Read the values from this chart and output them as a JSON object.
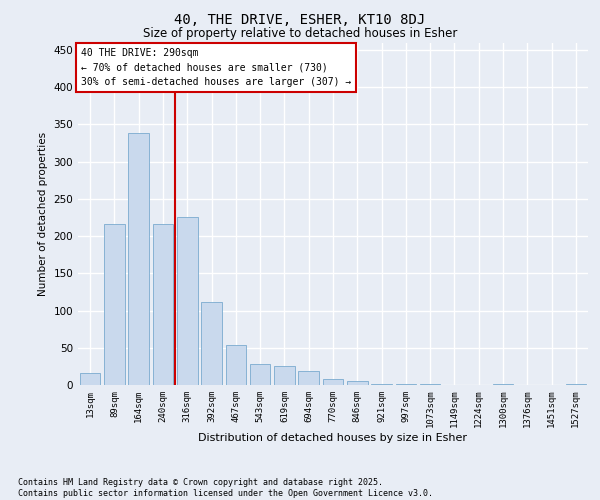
{
  "title1": "40, THE DRIVE, ESHER, KT10 8DJ",
  "title2": "Size of property relative to detached houses in Esher",
  "xlabel": "Distribution of detached houses by size in Esher",
  "ylabel": "Number of detached properties",
  "categories": [
    "13sqm",
    "89sqm",
    "164sqm",
    "240sqm",
    "316sqm",
    "392sqm",
    "467sqm",
    "543sqm",
    "619sqm",
    "694sqm",
    "770sqm",
    "846sqm",
    "921sqm",
    "997sqm",
    "1073sqm",
    "1149sqm",
    "1224sqm",
    "1300sqm",
    "1376sqm",
    "1451sqm",
    "1527sqm"
  ],
  "values": [
    16,
    216,
    338,
    216,
    225,
    112,
    54,
    28,
    25,
    19,
    8,
    5,
    1,
    1,
    1,
    0,
    0,
    1,
    0,
    0,
    1
  ],
  "bar_color": "#c9d9ed",
  "bar_edge_color": "#7aabcf",
  "vline_color": "#cc0000",
  "annotation_text": "40 THE DRIVE: 290sqm\n← 70% of detached houses are smaller (730)\n30% of semi-detached houses are larger (307) →",
  "annotation_box_color": "#ffffff",
  "annotation_box_edge": "#cc0000",
  "ylim": [
    0,
    460
  ],
  "yticks": [
    0,
    50,
    100,
    150,
    200,
    250,
    300,
    350,
    400,
    450
  ],
  "bg_color": "#e8edf5",
  "grid_color": "#ffffff",
  "footer": "Contains HM Land Registry data © Crown copyright and database right 2025.\nContains public sector information licensed under the Open Government Licence v3.0."
}
